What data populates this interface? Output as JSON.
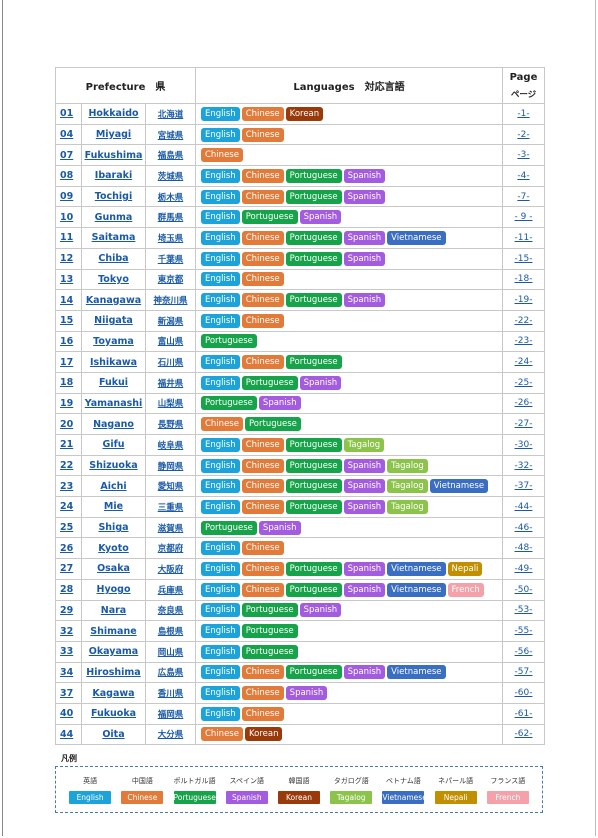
{
  "table": {
    "header": {
      "prefecture": "Prefecture　県",
      "languages": "Languages　対応言語",
      "page": "Page",
      "page_ja": "ページ"
    },
    "rows": [
      {
        "code": "01",
        "name": "Hokkaido",
        "name_ja": "北海道",
        "languages": [
          "English",
          "Chinese",
          "Korean"
        ],
        "page": "-1-"
      },
      {
        "code": "04",
        "name": "Miyagi",
        "name_ja": "宮城県",
        "languages": [
          "English",
          "Chinese"
        ],
        "page": "-2-"
      },
      {
        "code": "07",
        "name": "Fukushima",
        "name_ja": "福島県",
        "languages": [
          "Chinese"
        ],
        "page": "-3-"
      },
      {
        "code": "08",
        "name": "Ibaraki",
        "name_ja": "茨城県",
        "languages": [
          "English",
          "Chinese",
          "Portuguese",
          "Spanish"
        ],
        "page": "-4-"
      },
      {
        "code": "09",
        "name": "Tochigi",
        "name_ja": "栃木県",
        "languages": [
          "English",
          "Chinese",
          "Portuguese",
          "Spanish"
        ],
        "page": "-7-"
      },
      {
        "code": "10",
        "name": "Gunma",
        "name_ja": "群馬県",
        "languages": [
          "English",
          "Portuguese",
          "Spanish"
        ],
        "page": "- 9 -"
      },
      {
        "code": "11",
        "name": "Saitama",
        "name_ja": "埼玉県",
        "languages": [
          "English",
          "Chinese",
          "Portuguese",
          "Spanish",
          "Vietnamese"
        ],
        "page": "-11-"
      },
      {
        "code": "12",
        "name": "Chiba",
        "name_ja": "千葉県",
        "languages": [
          "English",
          "Chinese",
          "Portuguese",
          "Spanish"
        ],
        "page": "-15-"
      },
      {
        "code": "13",
        "name": "Tokyo",
        "name_ja": "東京都",
        "languages": [
          "English",
          "Chinese"
        ],
        "page": "-18-"
      },
      {
        "code": "14",
        "name": "Kanagawa",
        "name_ja": "神奈川県",
        "languages": [
          "English",
          "Chinese",
          "Portuguese",
          "Spanish"
        ],
        "page": "-19-"
      },
      {
        "code": "15",
        "name": "Niigata",
        "name_ja": "新潟県",
        "languages": [
          "English",
          "Chinese"
        ],
        "page": "-22-"
      },
      {
        "code": "16",
        "name": "Toyama",
        "name_ja": "富山県",
        "languages": [
          "Portuguese"
        ],
        "page": "-23-"
      },
      {
        "code": "17",
        "name": "Ishikawa",
        "name_ja": "石川県",
        "languages": [
          "English",
          "Chinese",
          "Portuguese"
        ],
        "page": "-24-"
      },
      {
        "code": "18",
        "name": "Fukui",
        "name_ja": "福井県",
        "languages": [
          "English",
          "Portuguese",
          "Spanish"
        ],
        "page": "-25-"
      },
      {
        "code": "19",
        "name": "Yamanashi",
        "name_ja": "山梨県",
        "languages": [
          "Portuguese",
          "Spanish"
        ],
        "page": "-26-"
      },
      {
        "code": "20",
        "name": "Nagano",
        "name_ja": "長野県",
        "languages": [
          "Chinese",
          "Portuguese"
        ],
        "page": "-27-"
      },
      {
        "code": "21",
        "name": "Gifu",
        "name_ja": "岐阜県",
        "languages": [
          "English",
          "Chinese",
          "Portuguese",
          "Tagalog"
        ],
        "page": "-30-"
      },
      {
        "code": "22",
        "name": "Shizuoka",
        "name_ja": "静岡県",
        "languages": [
          "English",
          "Chinese",
          "Portuguese",
          "Spanish",
          "Tagalog"
        ],
        "page": "-32-"
      },
      {
        "code": "23",
        "name": "Aichi",
        "name_ja": "愛知県",
        "languages": [
          "English",
          "Chinese",
          "Portuguese",
          "Spanish",
          "Tagalog",
          "Vietnamese"
        ],
        "page": "-37-"
      },
      {
        "code": "24",
        "name": "Mie",
        "name_ja": "三重県",
        "languages": [
          "English",
          "Chinese",
          "Portuguese",
          "Spanish",
          "Tagalog"
        ],
        "page": "-44-"
      },
      {
        "code": "25",
        "name": "Shiga",
        "name_ja": "滋賀県",
        "languages": [
          "Portuguese",
          "Spanish"
        ],
        "page": "-46-"
      },
      {
        "code": "26",
        "name": "Kyoto",
        "name_ja": "京都府",
        "languages": [
          "English",
          "Chinese"
        ],
        "page": "-48-"
      },
      {
        "code": "27",
        "name": "Osaka",
        "name_ja": "大阪府",
        "languages": [
          "English",
          "Chinese",
          "Portuguese",
          "Spanish",
          "Vietnamese",
          "Nepali"
        ],
        "page": "-49-"
      },
      {
        "code": "28",
        "name": "Hyogo",
        "name_ja": "兵庫県",
        "languages": [
          "English",
          "Chinese",
          "Portuguese",
          "Spanish",
          "Vietnamese",
          "French"
        ],
        "page": "-50-"
      },
      {
        "code": "29",
        "name": "Nara",
        "name_ja": "奈良県",
        "languages": [
          "English",
          "Portuguese",
          "Spanish"
        ],
        "page": "-53-"
      },
      {
        "code": "32",
        "name": "Shimane",
        "name_ja": "島根県",
        "languages": [
          "English",
          "Portuguese"
        ],
        "page": "-55-"
      },
      {
        "code": "33",
        "name": "Okayama",
        "name_ja": "岡山県",
        "languages": [
          "English",
          "Portuguese"
        ],
        "page": "-56-"
      },
      {
        "code": "34",
        "name": "Hiroshima",
        "name_ja": "広島県",
        "languages": [
          "English",
          "Chinese",
          "Portuguese",
          "Spanish",
          "Vietnamese"
        ],
        "page": "-57-"
      },
      {
        "code": "37",
        "name": "Kagawa",
        "name_ja": "香川県",
        "languages": [
          "English",
          "Chinese",
          "Spanish"
        ],
        "page": "-60-"
      },
      {
        "code": "40",
        "name": "Fukuoka",
        "name_ja": "福岡県",
        "languages": [
          "English",
          "Chinese"
        ],
        "page": "-61-"
      },
      {
        "code": "44",
        "name": "Oita",
        "name_ja": "大分県",
        "languages": [
          "Chinese",
          "Korean"
        ],
        "page": "-62-"
      }
    ]
  },
  "legend": {
    "title": "凡例",
    "items": [
      {
        "label_ja": "英語",
        "label": "English",
        "color": "#1ba3da"
      },
      {
        "label_ja": "中国語",
        "label": "Chinese",
        "color": "#e27b3a"
      },
      {
        "label_ja": "ポルトガル語",
        "label": "Portuguese",
        "color": "#16a34a"
      },
      {
        "label_ja": "スペイン語",
        "label": "Spanish",
        "color": "#a35be0"
      },
      {
        "label_ja": "韓国語",
        "label": "Korean",
        "color": "#9a3a0b"
      },
      {
        "label_ja": "タガログ語",
        "label": "Tagalog",
        "color": "#8cc34b"
      },
      {
        "label_ja": "ベトナム語",
        "label": "Vietnamese",
        "color": "#3a6ec2"
      },
      {
        "label_ja": "ネパール語",
        "label": "Nepali",
        "color": "#c18f00"
      },
      {
        "label_ja": "フランス語",
        "label": "French",
        "color": "#f4a1a9"
      }
    ]
  }
}
